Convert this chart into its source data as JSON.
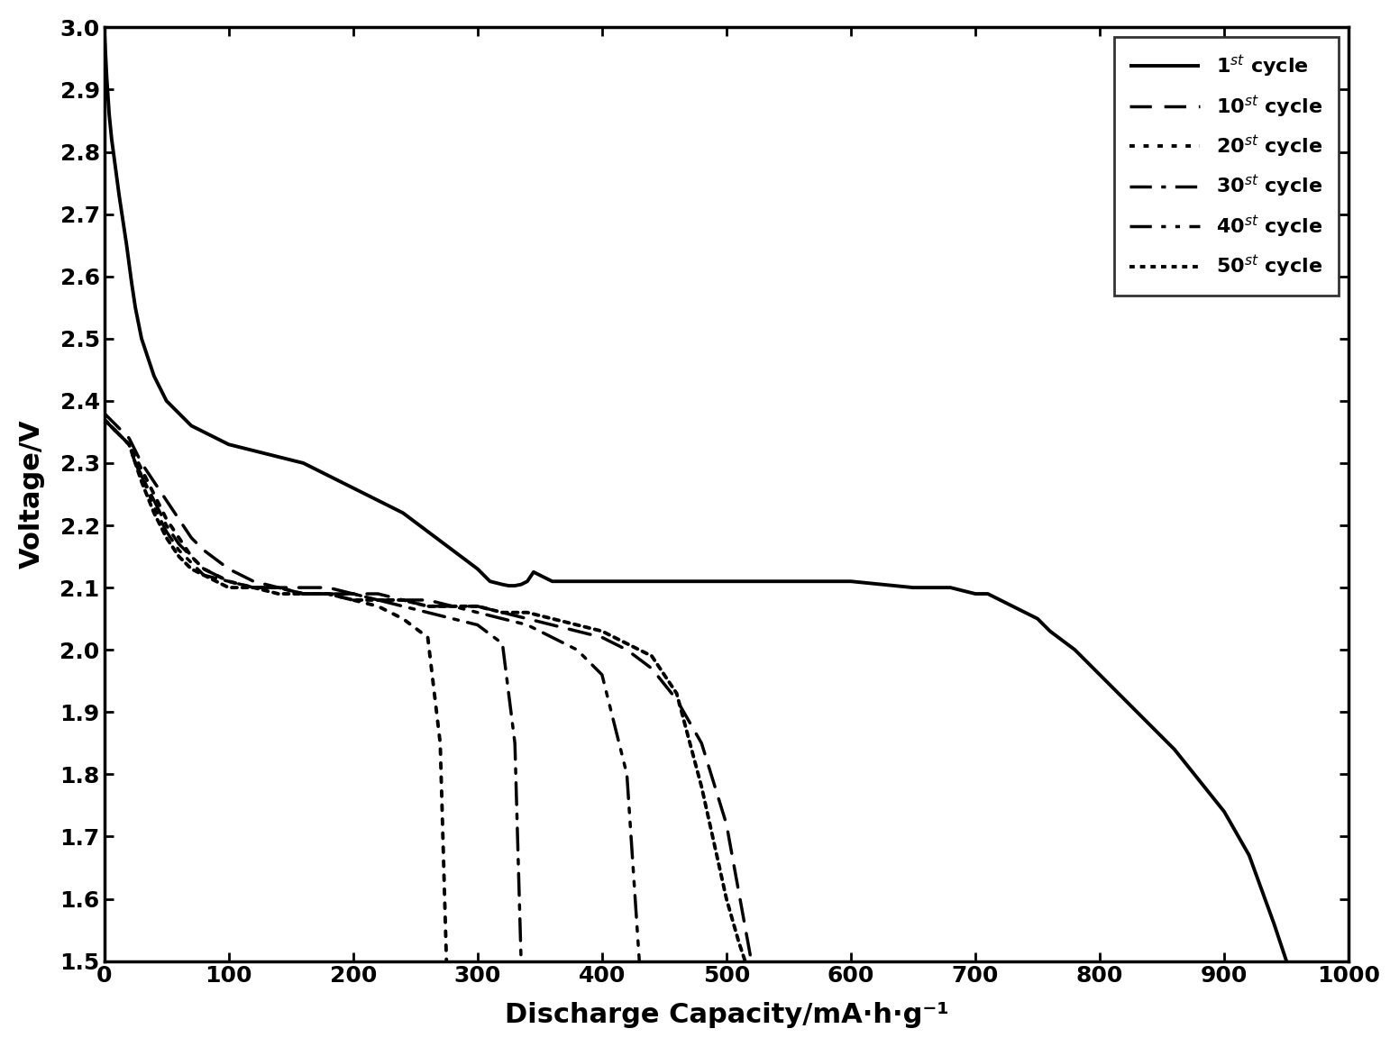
{
  "title": "",
  "xlabel": "Discharge Capacity/mA·h·g⁻¹",
  "ylabel": "Voltage/V",
  "xlim": [
    0,
    1000
  ],
  "ylim": [
    1.5,
    3.0
  ],
  "xticks": [
    0,
    100,
    200,
    300,
    400,
    500,
    600,
    700,
    800,
    900,
    1000
  ],
  "yticks": [
    1.5,
    1.6,
    1.7,
    1.8,
    1.9,
    2.0,
    2.1,
    2.2,
    2.3,
    2.4,
    2.5,
    2.6,
    2.7,
    2.8,
    2.9,
    3.0
  ],
  "background_color": "#ffffff",
  "line_color": "#000000",
  "series": [
    {
      "label": "1$^{st}$ cycle",
      "linestyle": "solid",
      "linewidth": 2.8,
      "x": [
        0,
        2,
        4,
        6,
        8,
        10,
        12,
        15,
        18,
        20,
        22,
        25,
        28,
        30,
        35,
        40,
        50,
        60,
        70,
        80,
        100,
        120,
        140,
        160,
        180,
        200,
        220,
        240,
        260,
        280,
        300,
        310,
        320,
        325,
        330,
        335,
        340,
        345,
        350,
        360,
        380,
        400,
        450,
        500,
        550,
        600,
        650,
        680,
        700,
        710,
        720,
        730,
        740,
        750,
        760,
        780,
        800,
        820,
        840,
        860,
        880,
        900,
        920,
        940,
        950
      ],
      "y": [
        3.0,
        2.92,
        2.86,
        2.82,
        2.79,
        2.76,
        2.73,
        2.69,
        2.65,
        2.62,
        2.59,
        2.55,
        2.52,
        2.5,
        2.47,
        2.44,
        2.4,
        2.38,
        2.36,
        2.35,
        2.33,
        2.32,
        2.31,
        2.3,
        2.28,
        2.26,
        2.24,
        2.22,
        2.19,
        2.16,
        2.13,
        2.11,
        2.105,
        2.103,
        2.103,
        2.105,
        2.11,
        2.125,
        2.12,
        2.11,
        2.11,
        2.11,
        2.11,
        2.11,
        2.11,
        2.11,
        2.1,
        2.1,
        2.09,
        2.09,
        2.08,
        2.07,
        2.06,
        2.05,
        2.03,
        2.0,
        1.96,
        1.92,
        1.88,
        1.84,
        1.79,
        1.74,
        1.67,
        1.56,
        1.5
      ]
    },
    {
      "label": "10$^{st}$ cycle",
      "linestyle": "dashed",
      "linewidth": 2.5,
      "x": [
        0,
        5,
        10,
        15,
        20,
        25,
        30,
        40,
        50,
        60,
        70,
        80,
        100,
        120,
        140,
        160,
        180,
        200,
        220,
        240,
        260,
        280,
        300,
        320,
        340,
        360,
        380,
        400,
        420,
        440,
        460,
        480,
        500,
        520
      ],
      "y": [
        2.38,
        2.37,
        2.36,
        2.35,
        2.34,
        2.32,
        2.3,
        2.27,
        2.24,
        2.21,
        2.18,
        2.16,
        2.13,
        2.11,
        2.1,
        2.1,
        2.1,
        2.09,
        2.09,
        2.08,
        2.08,
        2.07,
        2.07,
        2.06,
        2.05,
        2.04,
        2.03,
        2.02,
        2.0,
        1.97,
        1.92,
        1.85,
        1.72,
        1.5
      ]
    },
    {
      "label": "20$^{st}$ cycle",
      "linestyle": "dotted",
      "linewidth": 2.8,
      "x": [
        0,
        5,
        10,
        15,
        20,
        25,
        30,
        40,
        50,
        60,
        70,
        80,
        100,
        120,
        140,
        160,
        180,
        200,
        220,
        240,
        260,
        270,
        275
      ],
      "y": [
        2.37,
        2.36,
        2.35,
        2.34,
        2.33,
        2.31,
        2.29,
        2.25,
        2.21,
        2.18,
        2.15,
        2.13,
        2.11,
        2.1,
        2.1,
        2.09,
        2.09,
        2.08,
        2.07,
        2.05,
        2.02,
        1.85,
        1.5
      ]
    },
    {
      "label": "30$^{st}$ cycle",
      "linestyle": "dashdot",
      "linewidth": 2.5,
      "x": [
        0,
        5,
        10,
        15,
        20,
        25,
        30,
        40,
        50,
        60,
        70,
        80,
        100,
        120,
        140,
        160,
        180,
        200,
        220,
        240,
        260,
        280,
        300,
        320,
        330,
        335
      ],
      "y": [
        2.37,
        2.36,
        2.35,
        2.34,
        2.33,
        2.3,
        2.28,
        2.24,
        2.2,
        2.17,
        2.15,
        2.13,
        2.11,
        2.1,
        2.1,
        2.09,
        2.09,
        2.09,
        2.08,
        2.07,
        2.06,
        2.05,
        2.04,
        2.01,
        1.85,
        1.5
      ]
    },
    {
      "label": "40$^{st}$ cycle",
      "linestyle": "dash_dot_dot",
      "linewidth": 2.5,
      "x": [
        0,
        5,
        10,
        15,
        20,
        25,
        30,
        40,
        50,
        60,
        70,
        80,
        100,
        120,
        140,
        160,
        180,
        200,
        220,
        240,
        260,
        280,
        300,
        320,
        340,
        360,
        380,
        400,
        420,
        430
      ],
      "y": [
        2.37,
        2.36,
        2.35,
        2.34,
        2.33,
        2.3,
        2.28,
        2.23,
        2.19,
        2.16,
        2.14,
        2.12,
        2.11,
        2.1,
        2.1,
        2.09,
        2.09,
        2.09,
        2.08,
        2.08,
        2.07,
        2.07,
        2.06,
        2.05,
        2.04,
        2.02,
        2.0,
        1.96,
        1.8,
        1.5
      ]
    },
    {
      "label": "50$^{st}$ cycle",
      "linestyle": "densely_dotted",
      "linewidth": 2.8,
      "x": [
        0,
        5,
        10,
        15,
        20,
        25,
        30,
        40,
        50,
        60,
        70,
        80,
        100,
        120,
        140,
        160,
        180,
        200,
        220,
        240,
        260,
        280,
        300,
        320,
        340,
        360,
        380,
        400,
        420,
        440,
        460,
        480,
        500,
        510,
        515
      ],
      "y": [
        2.37,
        2.36,
        2.35,
        2.34,
        2.33,
        2.3,
        2.27,
        2.22,
        2.18,
        2.15,
        2.13,
        2.12,
        2.1,
        2.1,
        2.09,
        2.09,
        2.09,
        2.08,
        2.08,
        2.08,
        2.07,
        2.07,
        2.07,
        2.06,
        2.06,
        2.05,
        2.04,
        2.03,
        2.01,
        1.99,
        1.93,
        1.78,
        1.6,
        1.53,
        1.5
      ]
    }
  ]
}
